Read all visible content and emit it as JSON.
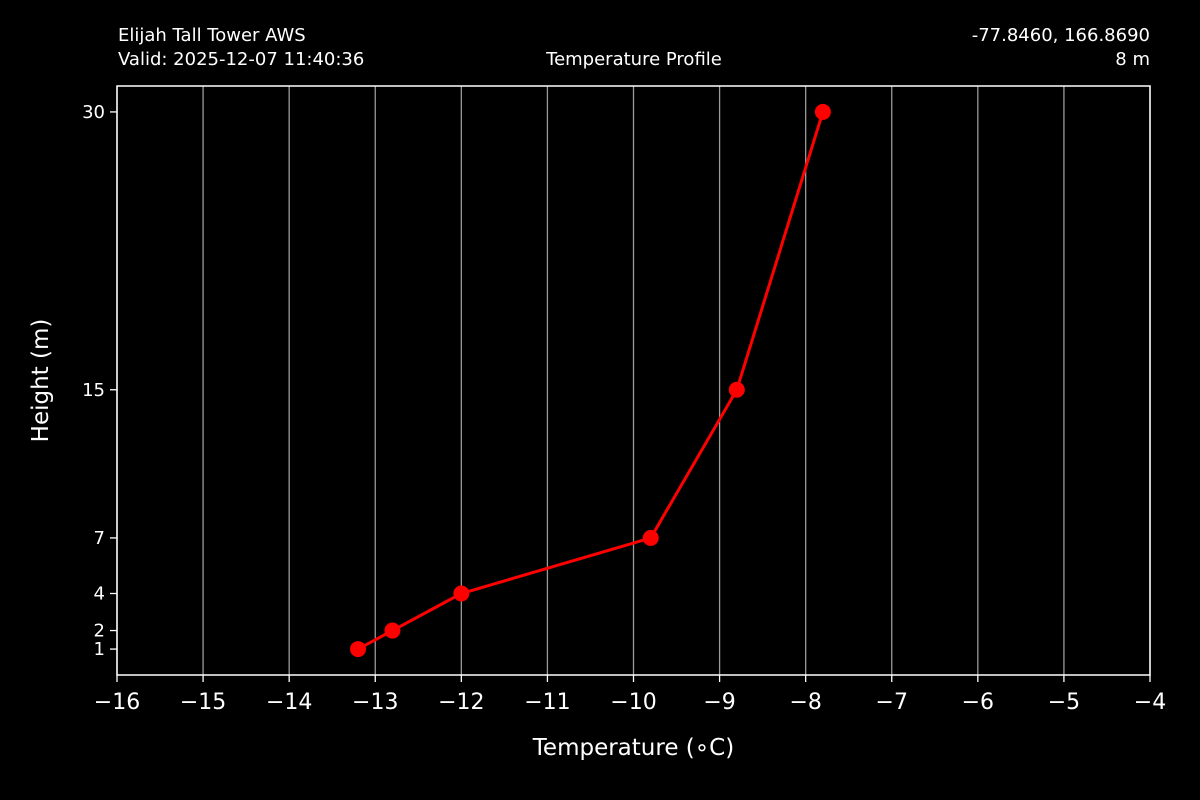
{
  "header": {
    "station": "Elijah Tall Tower AWS",
    "valid": "Valid: 2025-12-07 11:40:36",
    "title": "Temperature Profile",
    "coords": "-77.8460, 166.8690",
    "elevation": "8 m"
  },
  "chart_data": {
    "type": "line",
    "xlabel": "Temperature (∘C)",
    "ylabel": "Height (m)",
    "xlim": [
      -16,
      -4
    ],
    "ylim": [
      -0.4,
      31.4
    ],
    "x_ticks": [
      -16,
      -15,
      -14,
      -13,
      -12,
      -11,
      -10,
      -9,
      -8,
      -7,
      -6,
      -5,
      -4
    ],
    "x_tick_labels": [
      "−16",
      "−15",
      "−14",
      "−13",
      "−12",
      "−11",
      "−10",
      "−9",
      "−8",
      "−7",
      "−6",
      "−5",
      "−4"
    ],
    "y_ticks": [
      1,
      2,
      4,
      7,
      15,
      30
    ],
    "y_tick_labels": [
      "1",
      "2",
      "4",
      "7",
      "15",
      "30"
    ],
    "grid": "vertical",
    "series": [
      {
        "color": "#ff0000",
        "points": [
          {
            "temperature": -13.2,
            "height": 1
          },
          {
            "temperature": -12.8,
            "height": 2
          },
          {
            "temperature": -12.0,
            "height": 4
          },
          {
            "temperature": -9.8,
            "height": 7
          },
          {
            "temperature": -8.8,
            "height": 15
          },
          {
            "temperature": -7.8,
            "height": 30
          }
        ]
      }
    ]
  }
}
